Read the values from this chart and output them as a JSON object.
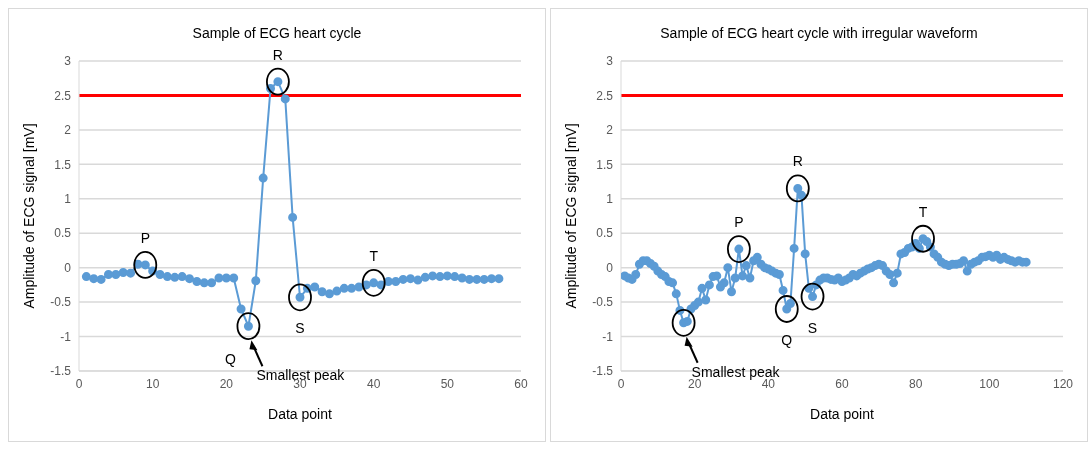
{
  "chart_data": [
    {
      "type": "line",
      "title": "Sample of ECG heart cycle",
      "xlabel": "Data point",
      "ylabel": "Amplitude of ECG signal [mV]",
      "series": [
        {
          "color": "#5b9bd5",
          "x": [
            1,
            2,
            3,
            4,
            5,
            6,
            7,
            8,
            9,
            10,
            11,
            12,
            13,
            14,
            15,
            16,
            17,
            18,
            19,
            20,
            21,
            22,
            23,
            24,
            25,
            26,
            27,
            28,
            29,
            30,
            31,
            32,
            33,
            34,
            35,
            36,
            37,
            38,
            39,
            40,
            41,
            42,
            43,
            44,
            45,
            46,
            47,
            48,
            49,
            50,
            51,
            52,
            53,
            54,
            55,
            56,
            57
          ],
          "values": [
            -0.13,
            -0.16,
            -0.17,
            -0.1,
            -0.1,
            -0.07,
            -0.08,
            0.05,
            0.04,
            -0.05,
            -0.1,
            -0.13,
            -0.14,
            -0.13,
            -0.16,
            -0.2,
            -0.22,
            -0.22,
            -0.15,
            -0.15,
            -0.15,
            -0.6,
            -0.85,
            -0.19,
            1.3,
            2.6,
            2.7,
            2.45,
            0.73,
            -0.43,
            -0.3,
            -0.28,
            -0.35,
            -0.38,
            -0.34,
            -0.3,
            -0.3,
            -0.28,
            -0.25,
            -0.22,
            -0.25,
            -0.2,
            -0.2,
            -0.17,
            -0.16,
            -0.18,
            -0.14,
            -0.12,
            -0.13,
            -0.12,
            -0.13,
            -0.15,
            -0.17,
            -0.17,
            -0.17,
            -0.16,
            -0.16
          ]
        }
      ],
      "xlim": [
        0,
        60
      ],
      "xticks": [
        0,
        10,
        20,
        30,
        40,
        50,
        60
      ],
      "ylim": [
        -1.5,
        3
      ],
      "yticks": [
        -1.5,
        -1,
        -0.5,
        0,
        0.5,
        1,
        1.5,
        2,
        2.5,
        3
      ],
      "grid": "y",
      "marker": "circle",
      "line_style": "solid",
      "ref_lines": [
        {
          "axis": "y",
          "value": 2.5,
          "color": "#ff0000"
        }
      ],
      "annotations": [
        {
          "text": "P",
          "x": 9,
          "y": 0.04
        },
        {
          "text": "R",
          "x": 27,
          "y": 2.7
        },
        {
          "text": "Q",
          "x": 23,
          "y": -0.85
        },
        {
          "text": "S",
          "x": 30,
          "y": -0.43
        },
        {
          "text": "T",
          "x": 40,
          "y": -0.22
        },
        {
          "text": "Smallest peak",
          "x": 23,
          "y": -0.85
        }
      ]
    },
    {
      "type": "line",
      "title": "Sample of ECG heart cycle with irregular waveform",
      "xlabel": "Data point",
      "ylabel": "Amplitude of ECG signal [mV]",
      "series": [
        {
          "color": "#5b9bd5",
          "x": [
            1,
            2,
            3,
            4,
            5,
            6,
            7,
            8,
            9,
            10,
            11,
            12,
            13,
            14,
            15,
            16,
            17,
            18,
            19,
            20,
            21,
            22,
            23,
            24,
            25,
            26,
            27,
            28,
            29,
            30,
            31,
            32,
            33,
            34,
            35,
            36,
            37,
            38,
            39,
            40,
            41,
            42,
            43,
            44,
            45,
            46,
            47,
            48,
            49,
            50,
            51,
            52,
            53,
            54,
            55,
            56,
            57,
            58,
            59,
            60,
            61,
            62,
            63,
            64,
            65,
            66,
            67,
            68,
            69,
            70,
            71,
            72,
            73,
            74,
            75,
            76,
            77,
            78,
            79,
            80,
            81,
            82,
            83,
            84,
            85,
            86,
            87,
            88,
            89,
            90,
            91,
            92,
            93,
            94,
            95,
            96,
            97,
            98,
            99,
            100,
            101,
            102,
            103,
            104,
            105,
            106,
            107,
            108,
            109,
            110
          ],
          "values": [
            -0.12,
            -0.15,
            -0.17,
            -0.1,
            0.05,
            0.1,
            0.1,
            0.06,
            0.02,
            -0.05,
            -0.1,
            -0.13,
            -0.2,
            -0.22,
            -0.38,
            -0.62,
            -0.8,
            -0.78,
            -0.6,
            -0.55,
            -0.5,
            -0.3,
            -0.47,
            -0.25,
            -0.13,
            -0.12,
            -0.28,
            -0.22,
            0,
            -0.35,
            -0.15,
            0.27,
            -0.12,
            0.03,
            -0.15,
            0.1,
            0.15,
            0.05,
            0,
            -0.02,
            -0.05,
            -0.08,
            -0.1,
            -0.33,
            -0.6,
            -0.52,
            0.28,
            1.15,
            1.05,
            0.2,
            -0.3,
            -0.42,
            -0.25,
            -0.18,
            -0.15,
            -0.15,
            -0.17,
            -0.18,
            -0.15,
            -0.2,
            -0.18,
            -0.15,
            -0.1,
            -0.12,
            -0.08,
            -0.05,
            -0.02,
            0,
            0.03,
            0.05,
            0.03,
            -0.05,
            -0.1,
            -0.22,
            -0.08,
            0.2,
            0.22,
            0.28,
            0.3,
            0.35,
            0.28,
            0.42,
            0.38,
            0.3,
            0.2,
            0.15,
            0.08,
            0.05,
            0.03,
            0.05,
            0.05,
            0.06,
            0.1,
            -0.05,
            0.05,
            0.08,
            0.1,
            0.15,
            0.16,
            0.18,
            0.15,
            0.18,
            0.12,
            0.15,
            0.12,
            0.1,
            0.08,
            0.1,
            0.08,
            0.08
          ]
        }
      ],
      "xlim": [
        0,
        120
      ],
      "xticks": [
        0,
        20,
        40,
        60,
        80,
        100,
        120
      ],
      "ylim": [
        -1.5,
        3
      ],
      "yticks": [
        -1.5,
        -1,
        -0.5,
        0,
        0.5,
        1,
        1.5,
        2,
        2.5,
        3
      ],
      "grid": "y",
      "marker": "circle",
      "line_style": "solid",
      "ref_lines": [
        {
          "axis": "y",
          "value": 2.5,
          "color": "#ff0000"
        }
      ],
      "annotations": [
        {
          "text": "Smallest peak",
          "x": 17,
          "y": -0.8
        },
        {
          "text": "P",
          "x": 32,
          "y": 0.27
        },
        {
          "text": "Q",
          "x": 45,
          "y": -0.6
        },
        {
          "text": "R",
          "x": 48,
          "y": 1.15
        },
        {
          "text": "S",
          "x": 52,
          "y": -0.42
        },
        {
          "text": "T",
          "x": 82,
          "y": 0.42
        }
      ]
    }
  ]
}
